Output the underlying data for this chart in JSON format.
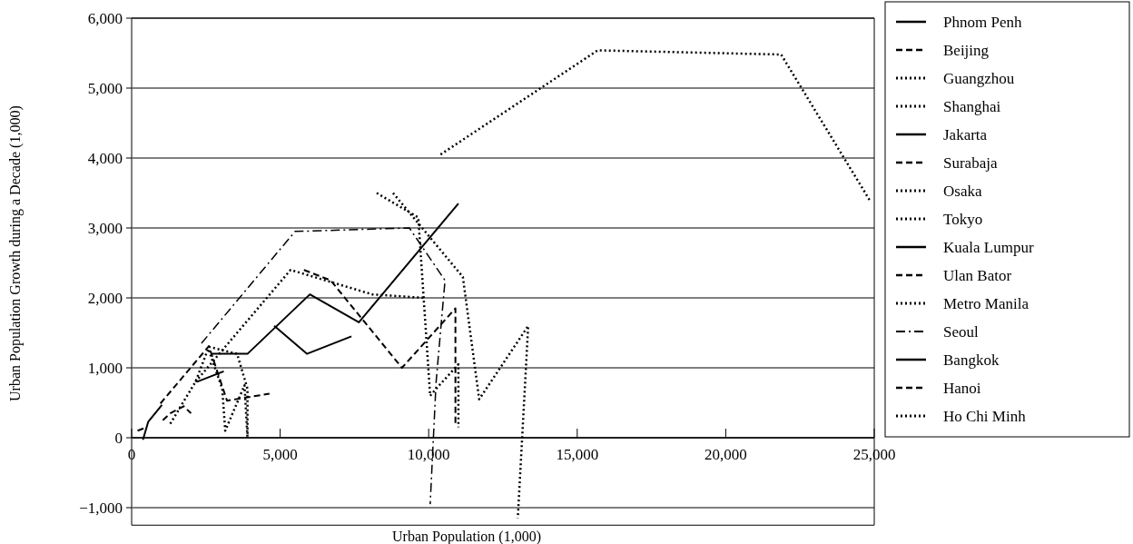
{
  "chart_data": {
    "type": "line",
    "xlabel": "Urban Population (1,000)",
    "ylabel": "Urban Population Growth during a Decade (1,000)",
    "xlim": [
      0,
      25000
    ],
    "xticks": [
      0,
      {
        "value": 5000,
        "label": "5,000"
      },
      {
        "value": 10000,
        "label": "10,000"
      },
      {
        "value": 15000,
        "label": "15,000"
      },
      {
        "value": 20000,
        "label": "20,000"
      },
      {
        "value": 25000,
        "label": "25,000"
      }
    ],
    "ylim": [
      -1250,
      6000
    ],
    "yticks": [
      {
        "value": -1000,
        "label": "−1,000"
      },
      0,
      {
        "value": 1000,
        "label": "1,000"
      },
      {
        "value": 2000,
        "label": "2,000"
      },
      {
        "value": 3000,
        "label": "3,000"
      },
      {
        "value": 4000,
        "label": "4,000"
      },
      {
        "value": 5000,
        "label": "5,000"
      },
      {
        "value": 6000,
        "label": "6,000"
      }
    ],
    "grid": "y",
    "legend": "right",
    "series": [
      {
        "name": "Phnom Penh",
        "color": "#000000",
        "line_style": "solid",
        "x": [
          380,
          560,
          1020
        ],
        "values": [
          -30,
          230,
          470
        ]
      },
      {
        "name": "Beijing",
        "color": "#000000",
        "line_style": "dashed",
        "x": [
          5800,
          6700,
          9100,
          10900,
          10900
        ],
        "values": [
          2400,
          2250,
          1000,
          1850,
          200
        ]
      },
      {
        "name": "Guangzhou",
        "color": "#000000",
        "line_style": "dotted",
        "x": [
          2600,
          3050,
          3150,
          3800,
          3900
        ],
        "values": [
          1250,
          700,
          100,
          750,
          0
        ]
      },
      {
        "name": "Shanghai",
        "color": "#000000",
        "line_style": "dotted",
        "x": [
          8250,
          9650,
          10050,
          10250,
          11000,
          11000
        ],
        "values": [
          3500,
          3150,
          600,
          700,
          1050,
          150
        ]
      },
      {
        "name": "Jakarta",
        "color": "#000000",
        "line_style": "solid",
        "x": [
          2700,
          3900,
          6000,
          7650,
          11000
        ],
        "values": [
          1200,
          1200,
          2050,
          1650,
          3350
        ]
      },
      {
        "name": "Surabaja",
        "color": "#000000",
        "line_style": "dashed",
        "x": [
          1050,
          1300,
          1750,
          2000
        ],
        "values": [
          250,
          350,
          450,
          350
        ]
      },
      {
        "name": "Osaka",
        "color": "#000000",
        "line_style": "dotted",
        "x": [
          8800,
          11150,
          11700,
          13350,
          13000
        ],
        "values": [
          3500,
          2300,
          550,
          1600,
          -1150
        ]
      },
      {
        "name": "Tokyo",
        "color": "#000000",
        "line_style": "dotted",
        "x": [
          10400,
          15690,
          21865,
          24870
        ],
        "values": [
          4050,
          5540,
          5480,
          3380
        ]
      },
      {
        "name": "Kuala Lumpur",
        "color": "#000000",
        "line_style": "solid",
        "x": [
          4800,
          5900,
          7400
        ],
        "values": [
          1600,
          1200,
          1450
        ]
      },
      {
        "name": "Ulan Bator",
        "color": "#000000",
        "line_style": "dashed",
        "x": [
          200,
          500
        ],
        "values": [
          100,
          150
        ]
      },
      {
        "name": "Metro Manila",
        "color": "#000000",
        "line_style": "dotted",
        "x": [
          2150,
          5350,
          8100,
          9850
        ],
        "values": [
          800,
          2400,
          2050,
          2000
        ]
      },
      {
        "name": "Seoul",
        "color": "#000000",
        "line_style": "dashdot",
        "x": [
          2350,
          5500,
          9350,
          10550,
          10250,
          10050
        ],
        "values": [
          1350,
          2950,
          3000,
          2250,
          800,
          -950
        ]
      },
      {
        "name": "Bangkok",
        "color": "#000000",
        "line_style": "solid",
        "x": [
          2200,
          3100
        ],
        "values": [
          800,
          950
        ]
      },
      {
        "name": "Hanoi",
        "color": "#000000",
        "line_style": "dashed",
        "x": [
          970,
          2600,
          3210,
          4640
        ],
        "values": [
          490,
          1310,
          530,
          630
        ]
      },
      {
        "name": "Ho Chi Minh",
        "color": "#000000",
        "line_style": "dotted",
        "x": [
          1300,
          2150,
          2600,
          3550,
          3900,
          3900
        ],
        "values": [
          200,
          800,
          1300,
          1200,
          700,
          0
        ]
      }
    ]
  }
}
